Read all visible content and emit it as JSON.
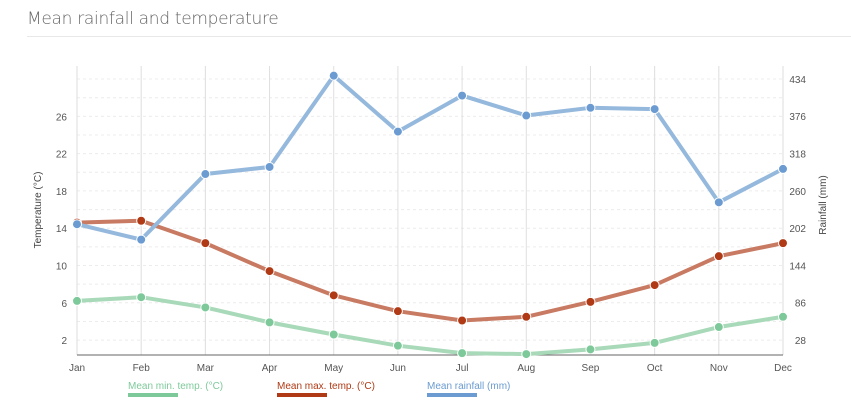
{
  "chart_data": {
    "type": "line",
    "title": "Mean rainfall and temperature",
    "categories": [
      "Jan",
      "Feb",
      "Mar",
      "Apr",
      "May",
      "Jun",
      "Jul",
      "Aug",
      "Sep",
      "Oct",
      "Nov",
      "Dec"
    ],
    "y_left": {
      "label": "Temperature (°C)",
      "ticks": [
        2,
        6,
        10,
        14,
        18,
        22,
        26
      ],
      "range": [
        0.4,
        31.4
      ]
    },
    "y_right": {
      "label": "Rainfall (mm)",
      "ticks": [
        28,
        86,
        144,
        202,
        260,
        318,
        376,
        434
      ],
      "range": [
        4.6,
        454
      ]
    },
    "grid": true,
    "legend_position": "bottom",
    "series": [
      {
        "name": "Mean min. temp. (°C)",
        "axis": "left",
        "color": "#7ec99a",
        "line_color": "#a8d9b8",
        "values": [
          6.2,
          6.6,
          5.5,
          3.9,
          2.6,
          1.4,
          0.6,
          0.5,
          1.0,
          1.7,
          3.4,
          4.5
        ]
      },
      {
        "name": "Mean max. temp. (°C)",
        "axis": "left",
        "color": "#b03a16",
        "line_color": "#c87a62",
        "values": [
          14.6,
          14.8,
          12.4,
          9.4,
          6.8,
          5.1,
          4.1,
          4.5,
          6.1,
          7.9,
          11.0,
          12.4
        ]
      },
      {
        "name": "Mean rainfall (mm)",
        "axis": "right",
        "color": "#6b9bd1",
        "line_color": "#95b8dd",
        "values": [
          208,
          184,
          286,
          297,
          439,
          352,
          408,
          377,
          389,
          387,
          242,
          294
        ]
      }
    ]
  }
}
